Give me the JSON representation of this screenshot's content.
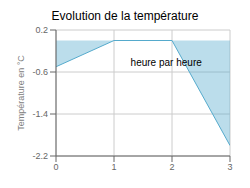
{
  "chart_data": {
    "type": "area",
    "title": "Evolution de la température",
    "ylabel": "Température en °C",
    "x": [
      0,
      1,
      2,
      3
    ],
    "values": [
      -0.5,
      0.0,
      0.0,
      -2.0
    ],
    "color": "#55aacc",
    "xlim": [
      0,
      3
    ],
    "ylim": [
      -2.2,
      0.2
    ],
    "xticks": [
      0,
      1,
      2,
      3
    ],
    "yticks": [
      0.2,
      -0.6,
      -1.4,
      -2.2
    ],
    "grid": true,
    "annotations": [
      {
        "text": "heure par heure",
        "x": 1.9,
        "y": -0.42
      }
    ]
  }
}
